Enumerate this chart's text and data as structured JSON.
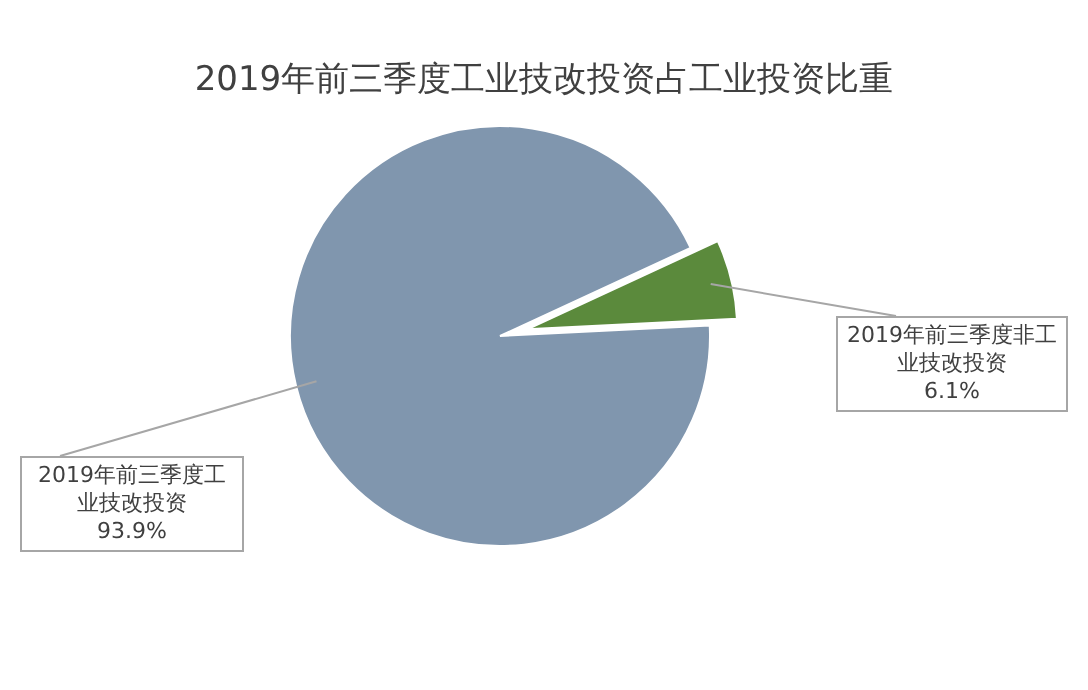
{
  "chart_data": {
    "type": "pie",
    "title": "2019年前三季度工业技改投资占工业投资比重",
    "categories": [
      "2019年前三季度工业技改投资",
      "2019年前三季度非工业技改投资"
    ],
    "values": [
      93.9,
      6.1
    ],
    "colors": [
      "#8096ae",
      "#5b8a3c"
    ],
    "value_labels": [
      "93.9%",
      "6.1%"
    ],
    "legend": false
  }
}
